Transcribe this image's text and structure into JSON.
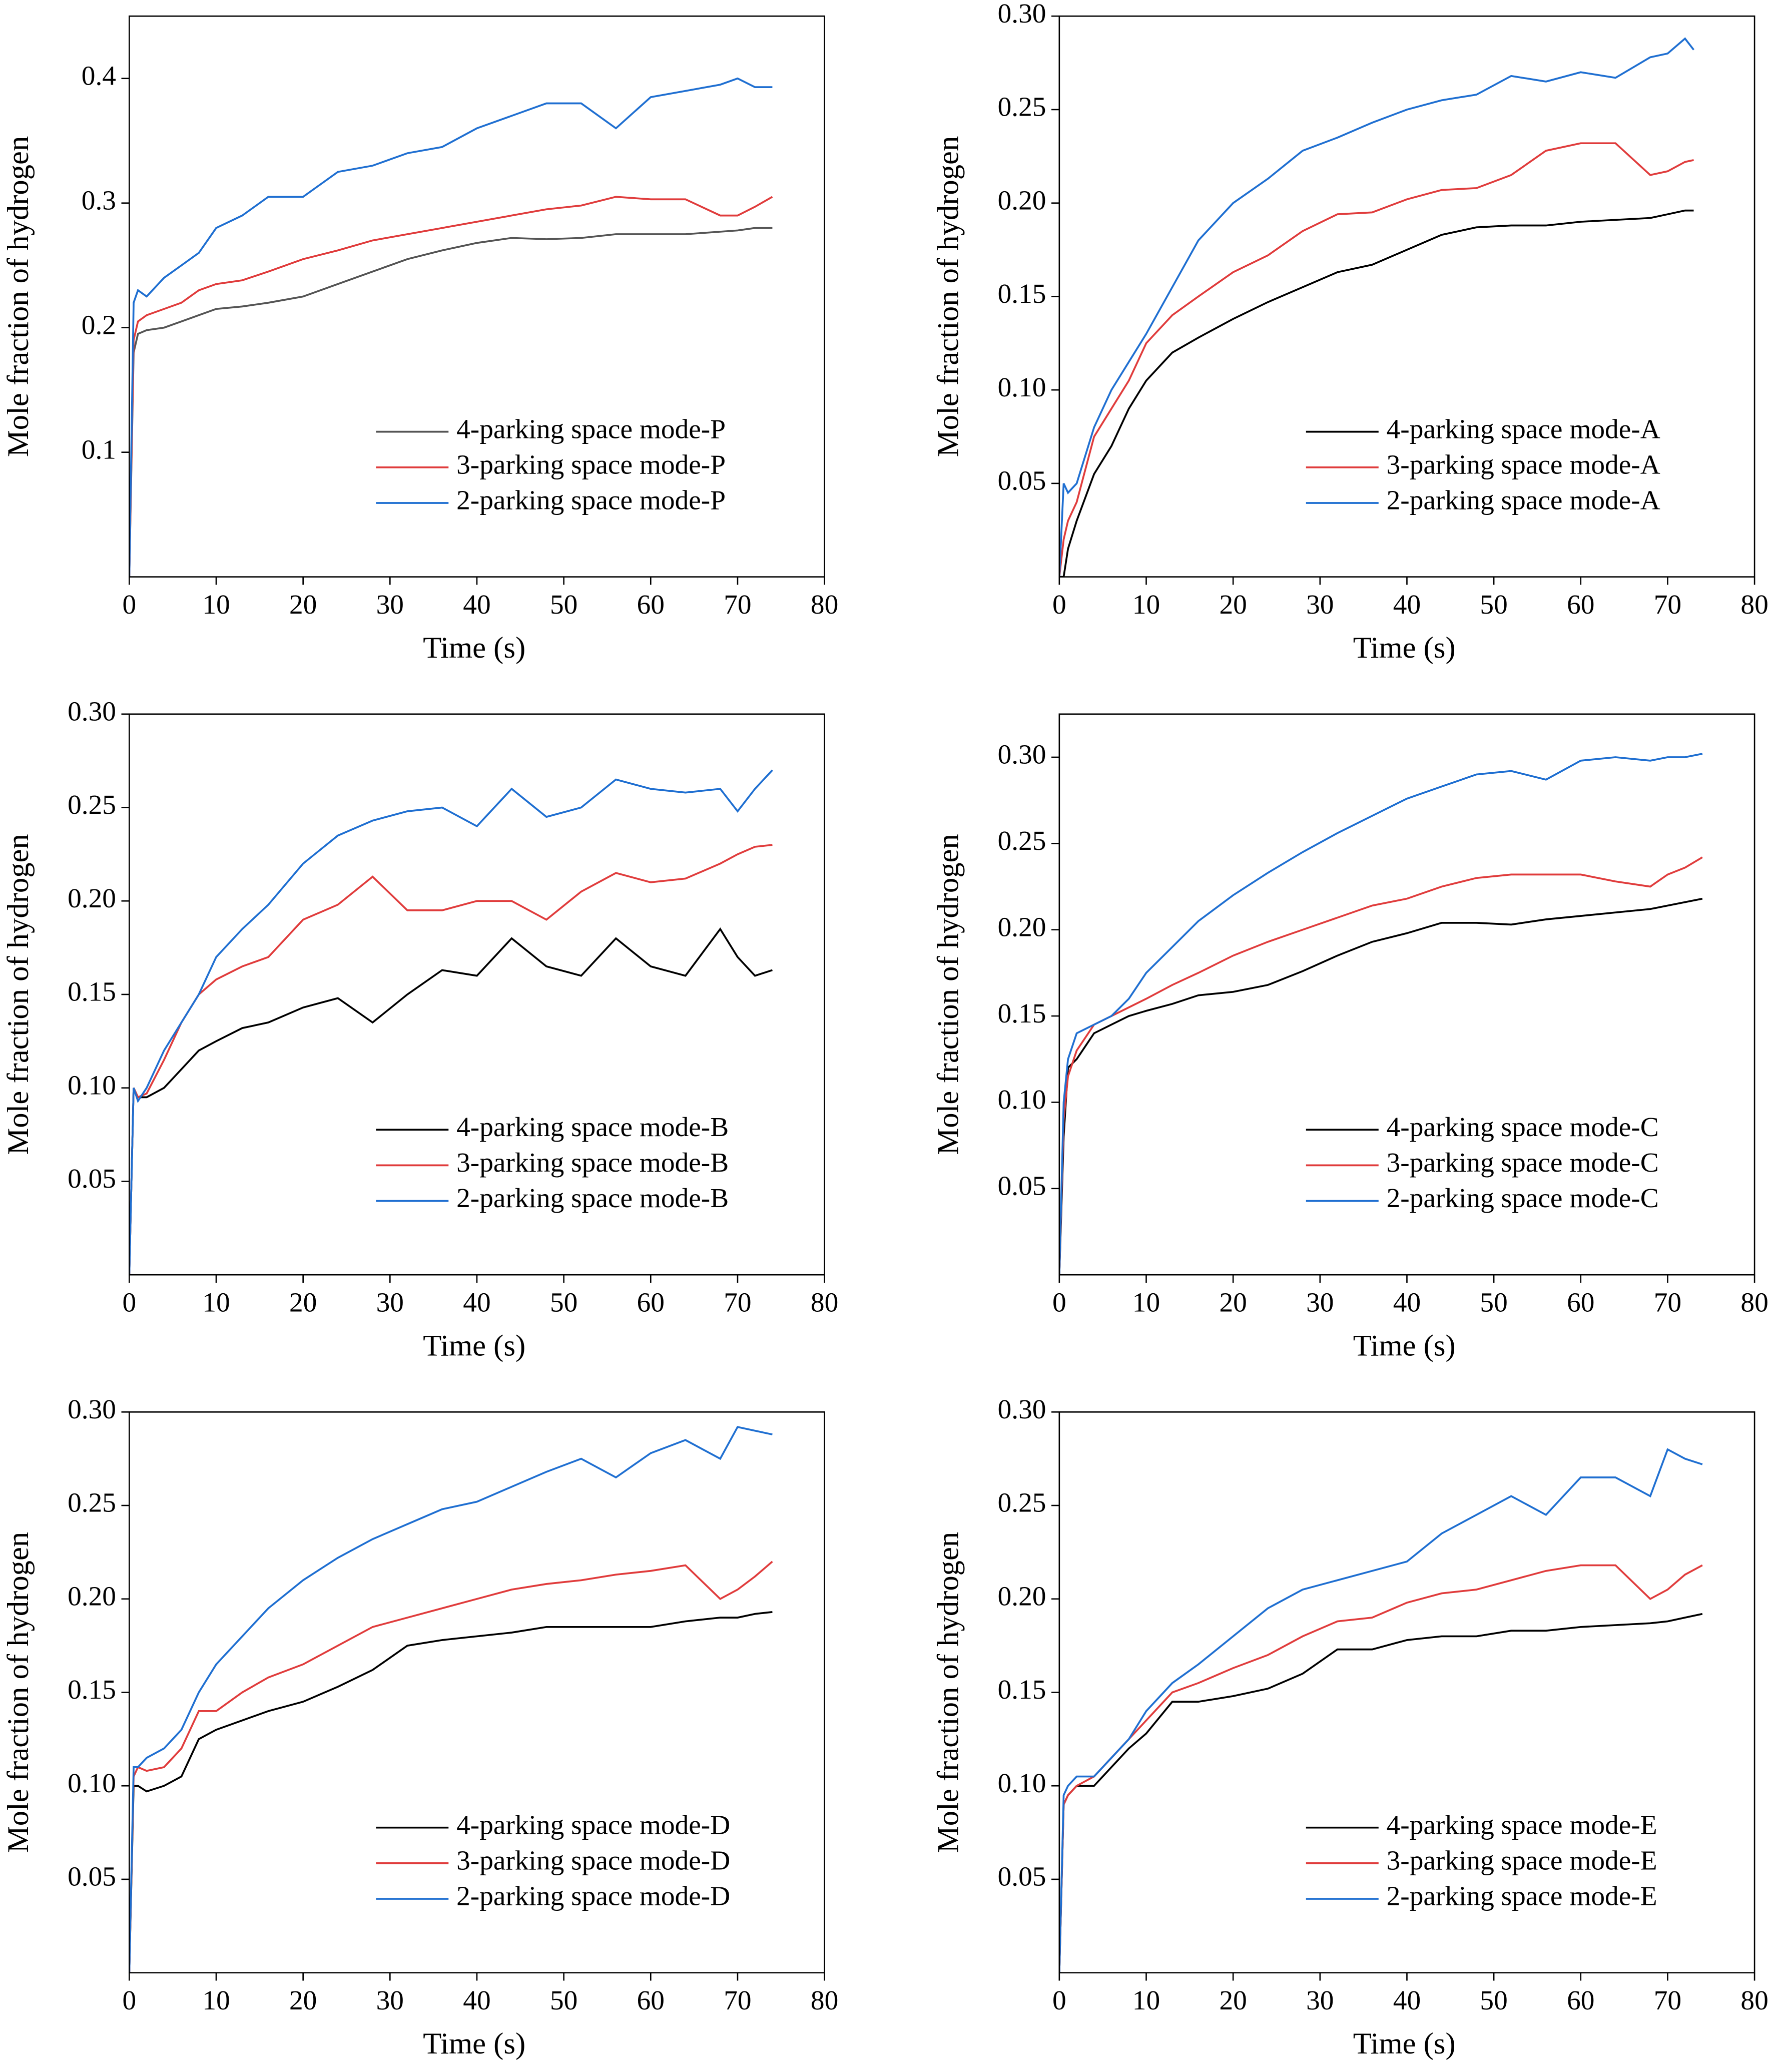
{
  "chart_data": [
    {
      "type": "line",
      "xlabel": "Time (s)",
      "ylabel": "Mole fraction of hydrogen",
      "x": [
        0,
        0.5,
        1,
        2,
        4,
        6,
        8,
        10,
        13,
        16,
        20,
        24,
        28,
        32,
        36,
        40,
        44,
        48,
        52,
        56,
        60,
        64,
        68,
        70,
        72,
        74
      ],
      "xlim": [
        0,
        80
      ],
      "xticks": [
        0,
        10,
        20,
        30,
        40,
        50,
        60,
        70,
        80
      ],
      "ylim": [
        0,
        0.45
      ],
      "yticks": [
        0.1,
        0.2,
        0.3,
        0.4
      ],
      "legend": "lower right",
      "series": [
        {
          "name": "4-parking space mode-P",
          "color": "#555555",
          "values": [
            0,
            0.18,
            0.195,
            0.198,
            0.2,
            0.205,
            0.21,
            0.215,
            0.217,
            0.22,
            0.225,
            0.235,
            0.245,
            0.255,
            0.262,
            0.268,
            0.272,
            0.271,
            0.272,
            0.275,
            0.275,
            0.275,
            0.277,
            0.278,
            0.28,
            0.28
          ]
        },
        {
          "name": "3-parking space mode-P",
          "color": "#e03c3c",
          "values": [
            0,
            0.19,
            0.205,
            0.21,
            0.215,
            0.22,
            0.23,
            0.235,
            0.238,
            0.245,
            0.255,
            0.262,
            0.27,
            0.275,
            0.28,
            0.285,
            0.29,
            0.295,
            0.298,
            0.305,
            0.303,
            0.303,
            0.29,
            0.29,
            0.297,
            0.305
          ]
        },
        {
          "name": "2-parking space mode-P",
          "color": "#1f6fd1",
          "values": [
            0,
            0.22,
            0.23,
            0.225,
            0.24,
            0.25,
            0.26,
            0.28,
            0.29,
            0.305,
            0.305,
            0.325,
            0.33,
            0.34,
            0.345,
            0.36,
            0.37,
            0.38,
            0.38,
            0.36,
            0.385,
            0.39,
            0.395,
            0.4,
            0.393,
            0.393
          ]
        }
      ]
    },
    {
      "type": "line",
      "xlabel": "Time (s)",
      "ylabel": "Mole fraction of hydrogen",
      "x": [
        0,
        0.5,
        1,
        2,
        4,
        6,
        8,
        10,
        13,
        16,
        20,
        24,
        28,
        32,
        36,
        40,
        44,
        48,
        52,
        56,
        60,
        64,
        68,
        70,
        72,
        73
      ],
      "xlim": [
        0,
        80
      ],
      "xticks": [
        0,
        10,
        20,
        30,
        40,
        50,
        60,
        70,
        80
      ],
      "ylim": [
        0,
        0.3
      ],
      "yticks": [
        0.05,
        {
          "value": 0.1,
          "label": "0.10"
        },
        0.15,
        {
          "value": 0.2,
          "label": "0.20"
        },
        0.25,
        {
          "value": 0.3,
          "label": "0.30"
        }
      ],
      "legend": "lower right",
      "series": [
        {
          "name": "4-parking space mode-A",
          "color": "#000000",
          "values": [
            0,
            0,
            0.015,
            0.03,
            0.055,
            0.07,
            0.09,
            0.105,
            0.12,
            0.128,
            0.138,
            0.147,
            0.155,
            0.163,
            0.167,
            0.175,
            0.183,
            0.187,
            0.188,
            0.188,
            0.19,
            0.191,
            0.192,
            0.194,
            0.196,
            0.196
          ]
        },
        {
          "name": "3-parking space mode-A",
          "color": "#e03c3c",
          "values": [
            0,
            0.02,
            0.03,
            0.04,
            0.075,
            0.09,
            0.105,
            0.125,
            0.14,
            0.15,
            0.163,
            0.172,
            0.185,
            0.194,
            0.195,
            0.202,
            0.207,
            0.208,
            0.215,
            0.228,
            0.232,
            0.232,
            0.215,
            0.217,
            0.222,
            0.223
          ]
        },
        {
          "name": "2-parking space mode-A",
          "color": "#1f6fd1",
          "values": [
            0,
            0.05,
            0.045,
            0.05,
            0.08,
            0.1,
            0.115,
            0.13,
            0.155,
            0.18,
            0.2,
            0.213,
            0.228,
            0.235,
            0.243,
            0.25,
            0.255,
            0.258,
            0.268,
            0.265,
            0.27,
            0.267,
            0.278,
            0.28,
            0.288,
            0.282
          ]
        }
      ]
    },
    {
      "type": "line",
      "xlabel": "Time (s)",
      "ylabel": "Mole fraction of hydrogen",
      "x": [
        0,
        0.5,
        1,
        2,
        4,
        6,
        8,
        10,
        13,
        16,
        20,
        24,
        28,
        32,
        36,
        40,
        44,
        48,
        52,
        56,
        60,
        64,
        68,
        70,
        72,
        74
      ],
      "xlim": [
        0,
        80
      ],
      "xticks": [
        0,
        10,
        20,
        30,
        40,
        50,
        60,
        70,
        80
      ],
      "ylim": [
        0,
        0.3
      ],
      "yticks": [
        0.05,
        {
          "value": 0.1,
          "label": "0.10"
        },
        0.15,
        {
          "value": 0.2,
          "label": "0.20"
        },
        0.25,
        {
          "value": 0.3,
          "label": "0.30"
        }
      ],
      "legend": "lower right",
      "series": [
        {
          "name": "4-parking space mode-B",
          "color": "#000000",
          "values": [
            0,
            0.1,
            0.095,
            0.095,
            0.1,
            0.11,
            0.12,
            0.125,
            0.132,
            0.135,
            0.143,
            0.148,
            0.135,
            0.15,
            0.163,
            0.16,
            0.18,
            0.165,
            0.16,
            0.18,
            0.165,
            0.16,
            0.185,
            0.17,
            0.16,
            0.163
          ]
        },
        {
          "name": "3-parking space mode-B",
          "color": "#e03c3c",
          "values": [
            0,
            0.1,
            0.095,
            0.097,
            0.115,
            0.135,
            0.15,
            0.158,
            0.165,
            0.17,
            0.19,
            0.198,
            0.213,
            0.195,
            0.195,
            0.2,
            0.2,
            0.19,
            0.205,
            0.215,
            0.21,
            0.212,
            0.22,
            0.225,
            0.229,
            0.23
          ]
        },
        {
          "name": "2-parking space mode-B",
          "color": "#1f6fd1",
          "values": [
            0,
            0.1,
            0.093,
            0.1,
            0.12,
            0.135,
            0.15,
            0.17,
            0.185,
            0.198,
            0.22,
            0.235,
            0.243,
            0.248,
            0.25,
            0.24,
            0.26,
            0.245,
            0.25,
            0.265,
            0.26,
            0.258,
            0.26,
            0.248,
            0.26,
            0.27
          ]
        }
      ]
    },
    {
      "type": "line",
      "xlabel": "Time (s)",
      "ylabel": "Mole fraction of hydrogen",
      "x": [
        0,
        0.5,
        1,
        2,
        4,
        6,
        8,
        10,
        13,
        16,
        20,
        24,
        28,
        32,
        36,
        40,
        44,
        48,
        52,
        56,
        60,
        64,
        68,
        70,
        72,
        74
      ],
      "xlim": [
        0,
        80
      ],
      "xticks": [
        0,
        10,
        20,
        30,
        40,
        50,
        60,
        70,
        80
      ],
      "ylim": [
        0,
        0.325
      ],
      "yticks": [
        0.05,
        {
          "value": 0.1,
          "label": "0.10"
        },
        0.15,
        {
          "value": 0.2,
          "label": "0.20"
        },
        0.25,
        {
          "value": 0.3,
          "label": "0.30"
        }
      ],
      "legend": "lower right",
      "series": [
        {
          "name": "4-parking space mode-C",
          "color": "#000000",
          "values": [
            0,
            0.08,
            0.12,
            0.125,
            0.14,
            0.145,
            0.15,
            0.153,
            0.157,
            0.162,
            0.164,
            0.168,
            0.176,
            0.185,
            0.193,
            0.198,
            0.204,
            0.204,
            0.203,
            0.206,
            0.208,
            0.21,
            0.212,
            0.214,
            0.216,
            0.218
          ]
        },
        {
          "name": "3-parking space mode-C",
          "color": "#e03c3c",
          "values": [
            0,
            0.09,
            0.115,
            0.13,
            0.145,
            0.15,
            0.155,
            0.16,
            0.168,
            0.175,
            0.185,
            0.193,
            0.2,
            0.207,
            0.214,
            0.218,
            0.225,
            0.23,
            0.232,
            0.232,
            0.232,
            0.228,
            0.225,
            0.232,
            0.236,
            0.242
          ]
        },
        {
          "name": "2-parking space mode-C",
          "color": "#1f6fd1",
          "values": [
            0,
            0.1,
            0.125,
            0.14,
            0.145,
            0.15,
            0.16,
            0.175,
            0.19,
            0.205,
            0.22,
            0.233,
            0.245,
            0.256,
            0.266,
            0.276,
            0.283,
            0.29,
            0.292,
            0.287,
            0.298,
            0.3,
            0.298,
            0.3,
            0.3,
            0.302
          ]
        }
      ]
    },
    {
      "type": "line",
      "xlabel": "Time (s)",
      "ylabel": "Mole fraction of hydrogen",
      "x": [
        0,
        0.5,
        1,
        2,
        4,
        6,
        8,
        10,
        13,
        16,
        20,
        24,
        28,
        32,
        36,
        40,
        44,
        48,
        52,
        56,
        60,
        64,
        68,
        70,
        72,
        74
      ],
      "xlim": [
        0,
        80
      ],
      "xticks": [
        0,
        10,
        20,
        30,
        40,
        50,
        60,
        70,
        80
      ],
      "ylim": [
        0,
        0.3
      ],
      "yticks": [
        0.05,
        {
          "value": 0.1,
          "label": "0.10"
        },
        0.15,
        {
          "value": 0.2,
          "label": "0.20"
        },
        0.25,
        {
          "value": 0.3,
          "label": "0.30"
        }
      ],
      "legend": "lower right",
      "series": [
        {
          "name": "4-parking space mode-D",
          "color": "#000000",
          "values": [
            0,
            0.1,
            0.1,
            0.097,
            0.1,
            0.105,
            0.125,
            0.13,
            0.135,
            0.14,
            0.145,
            0.153,
            0.162,
            0.175,
            0.178,
            0.18,
            0.182,
            0.185,
            0.185,
            0.185,
            0.185,
            0.188,
            0.19,
            0.19,
            0.192,
            0.193
          ]
        },
        {
          "name": "3-parking space mode-D",
          "color": "#e03c3c",
          "values": [
            0,
            0.105,
            0.11,
            0.108,
            0.11,
            0.12,
            0.14,
            0.14,
            0.15,
            0.158,
            0.165,
            0.175,
            0.185,
            0.19,
            0.195,
            0.2,
            0.205,
            0.208,
            0.21,
            0.213,
            0.215,
            0.218,
            0.2,
            0.205,
            0.212,
            0.22
          ]
        },
        {
          "name": "2-parking space mode-D",
          "color": "#1f6fd1",
          "values": [
            0,
            0.11,
            0.11,
            0.115,
            0.12,
            0.13,
            0.15,
            0.165,
            0.18,
            0.195,
            0.21,
            0.222,
            0.232,
            0.24,
            0.248,
            0.252,
            0.26,
            0.268,
            0.275,
            0.265,
            0.278,
            0.285,
            0.275,
            0.292,
            0.29,
            0.288
          ]
        }
      ]
    },
    {
      "type": "line",
      "xlabel": "Time (s)",
      "ylabel": "Mole fraction of hydrogen",
      "x": [
        0,
        0.5,
        1,
        2,
        4,
        6,
        8,
        10,
        13,
        16,
        20,
        24,
        28,
        32,
        36,
        40,
        44,
        48,
        52,
        56,
        60,
        64,
        68,
        70,
        72,
        74
      ],
      "xlim": [
        0,
        80
      ],
      "xticks": [
        0,
        10,
        20,
        30,
        40,
        50,
        60,
        70,
        80
      ],
      "ylim": [
        0,
        0.3
      ],
      "yticks": [
        0.05,
        {
          "value": 0.1,
          "label": "0.10"
        },
        0.15,
        {
          "value": 0.2,
          "label": "0.20"
        },
        0.25,
        {
          "value": 0.3,
          "label": "0.30"
        }
      ],
      "legend": "lower right",
      "series": [
        {
          "name": "4-parking space mode-E",
          "color": "#000000",
          "values": [
            0,
            0.09,
            0.095,
            0.1,
            0.1,
            0.11,
            0.12,
            0.128,
            0.145,
            0.145,
            0.148,
            0.152,
            0.16,
            0.173,
            0.173,
            0.178,
            0.18,
            0.18,
            0.183,
            0.183,
            0.185,
            0.186,
            0.187,
            0.188,
            0.19,
            0.192
          ]
        },
        {
          "name": "3-parking space mode-E",
          "color": "#e03c3c",
          "values": [
            0,
            0.09,
            0.095,
            0.1,
            0.105,
            0.115,
            0.125,
            0.135,
            0.15,
            0.155,
            0.163,
            0.17,
            0.18,
            0.188,
            0.19,
            0.198,
            0.203,
            0.205,
            0.21,
            0.215,
            0.218,
            0.218,
            0.2,
            0.205,
            0.213,
            0.218
          ]
        },
        {
          "name": "2-parking space mode-E",
          "color": "#1f6fd1",
          "values": [
            0,
            0.095,
            0.1,
            0.105,
            0.105,
            0.115,
            0.125,
            0.14,
            0.155,
            0.165,
            0.18,
            0.195,
            0.205,
            0.21,
            0.215,
            0.22,
            0.235,
            0.245,
            0.255,
            0.245,
            0.265,
            0.265,
            0.255,
            0.28,
            0.275,
            0.272
          ]
        }
      ]
    }
  ]
}
